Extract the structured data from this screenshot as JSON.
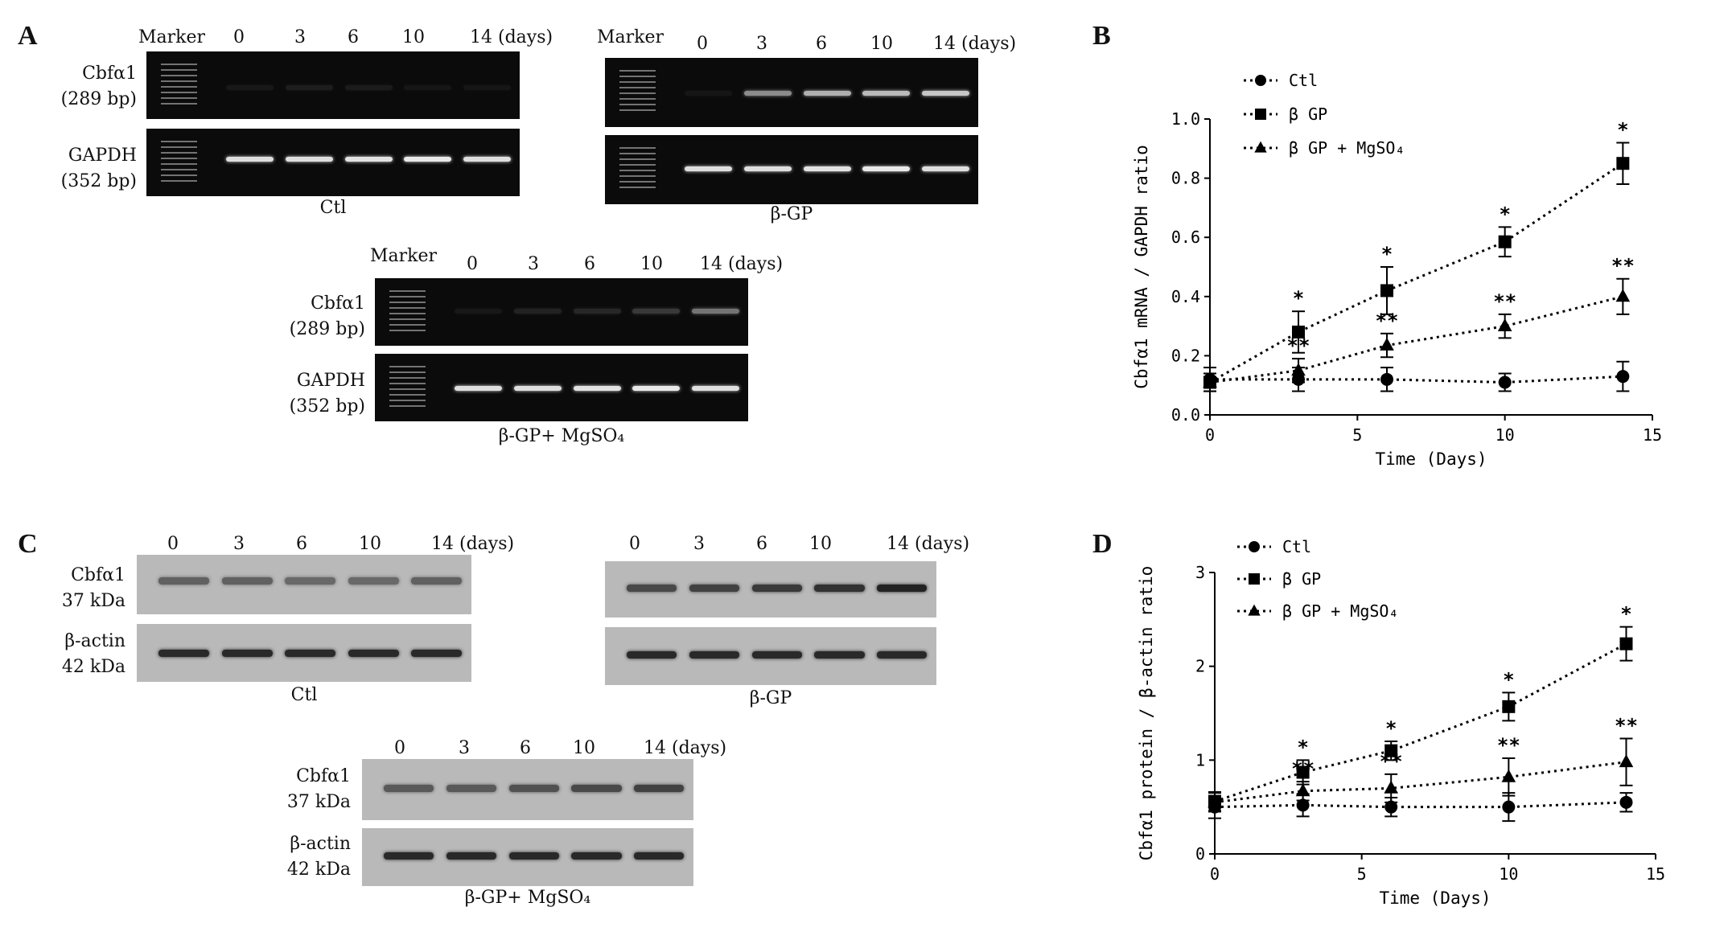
{
  "panels": {
    "a": "A",
    "b": "B",
    "c": "C",
    "d": "D"
  },
  "gels": {
    "marker": "Marker",
    "lanes": [
      "0",
      "3",
      "6",
      "10",
      "14"
    ],
    "lane_last": "14 (days)",
    "cbfa1": [
      "Cbfα1",
      "(289 bp)"
    ],
    "gapdh": [
      "GAPDH",
      "(352 bp)"
    ],
    "captions": [
      "Ctl",
      "β-GP",
      "β-GP+ MgSO₄"
    ],
    "intensity": {
      "ctl_cbfa1": [
        0.06,
        0.08,
        0.07,
        0.05,
        0.05
      ],
      "bgp_cbfa1": [
        0.05,
        0.55,
        0.7,
        0.75,
        0.8
      ],
      "mg_cbfa1": [
        0.06,
        0.1,
        0.12,
        0.2,
        0.45
      ],
      "gapdh": [
        0.9,
        0.9,
        0.92,
        0.95,
        0.9
      ]
    }
  },
  "blots": {
    "lanes": [
      "0",
      "3",
      "6",
      "10",
      "14"
    ],
    "lane_last": "14 (days)",
    "cbfa1": [
      "Cbfα1",
      "37 kDa"
    ],
    "actin": [
      "β-actin",
      "42 kDa"
    ],
    "captions": [
      "Ctl",
      "β-GP",
      "β-GP+ MgSO₄"
    ],
    "intensity": {
      "ctl_cbfa1": [
        0.55,
        0.55,
        0.5,
        0.5,
        0.55
      ],
      "bgp_cbfa1": [
        0.7,
        0.75,
        0.8,
        0.85,
        0.95
      ],
      "mg_cbfa1": [
        0.6,
        0.6,
        0.65,
        0.7,
        0.75
      ],
      "actin": [
        0.9,
        0.9,
        0.9,
        0.9,
        0.9
      ]
    }
  },
  "chart_data": [
    {
      "type": "line",
      "panel": "B",
      "xlabel": "Time (Days)",
      "ylabel": "Cbfα1 mRNA / GAPDH ratio",
      "xlim": [
        0,
        15
      ],
      "ylim": [
        0,
        1.0
      ],
      "xticks": [
        "0",
        "5",
        "10",
        "15"
      ],
      "yticks": [
        "0.0",
        "0.2",
        "0.4",
        "0.6",
        "0.8",
        "1.0"
      ],
      "x": [
        0,
        3,
        6,
        10,
        14
      ],
      "legend_position": "top-left",
      "line_style": "dotted",
      "series": [
        {
          "name": "Ctl",
          "marker": "circle",
          "values": [
            0.12,
            0.12,
            0.12,
            0.11,
            0.13
          ],
          "errors": [
            0.04,
            0.04,
            0.04,
            0.03,
            0.05
          ],
          "labels": [
            "",
            "",
            "",
            "",
            ""
          ]
        },
        {
          "name": "β GP",
          "marker": "square",
          "values": [
            0.11,
            0.28,
            0.42,
            0.585,
            0.85
          ],
          "errors": [
            0.03,
            0.07,
            0.08,
            0.05,
            0.07
          ],
          "labels": [
            "",
            "*",
            "*",
            "*",
            "*"
          ]
        },
        {
          "name": "β GP + MgSO₄",
          "marker": "triangle",
          "values": [
            0.11,
            0.15,
            0.235,
            0.3,
            0.4
          ],
          "errors": [
            0.03,
            0.04,
            0.04,
            0.04,
            0.06
          ],
          "labels": [
            "",
            "**",
            "**",
            "**",
            "**"
          ]
        }
      ]
    },
    {
      "type": "line",
      "panel": "D",
      "xlabel": "Time (Days)",
      "ylabel": "Cbfα1 protein / β-actin ratio",
      "xlim": [
        0,
        15
      ],
      "ylim": [
        0,
        3
      ],
      "xticks": [
        "0",
        "5",
        "10",
        "15"
      ],
      "yticks": [
        "0",
        "1",
        "2",
        "3"
      ],
      "x": [
        0,
        3,
        6,
        10,
        14
      ],
      "legend_position": "top-left",
      "line_style": "dotted",
      "series": [
        {
          "name": "Ctl",
          "marker": "circle",
          "values": [
            0.5,
            0.52,
            0.5,
            0.5,
            0.55
          ],
          "errors": [
            0.12,
            0.12,
            0.1,
            0.15,
            0.1
          ],
          "labels": [
            "",
            "",
            "",
            "",
            ""
          ]
        },
        {
          "name": "β GP",
          "marker": "square",
          "values": [
            0.56,
            0.87,
            1.1,
            1.57,
            2.24
          ],
          "errors": [
            0.1,
            0.13,
            0.1,
            0.15,
            0.18
          ],
          "labels": [
            "",
            "*",
            "*",
            "*",
            "*"
          ]
        },
        {
          "name": "β GP + MgSO₄",
          "marker": "triangle",
          "values": [
            0.55,
            0.67,
            0.7,
            0.82,
            0.98
          ],
          "errors": [
            0.1,
            0.1,
            0.15,
            0.2,
            0.25
          ],
          "labels": [
            "",
            "**",
            "**",
            "**",
            "**"
          ]
        }
      ]
    }
  ]
}
